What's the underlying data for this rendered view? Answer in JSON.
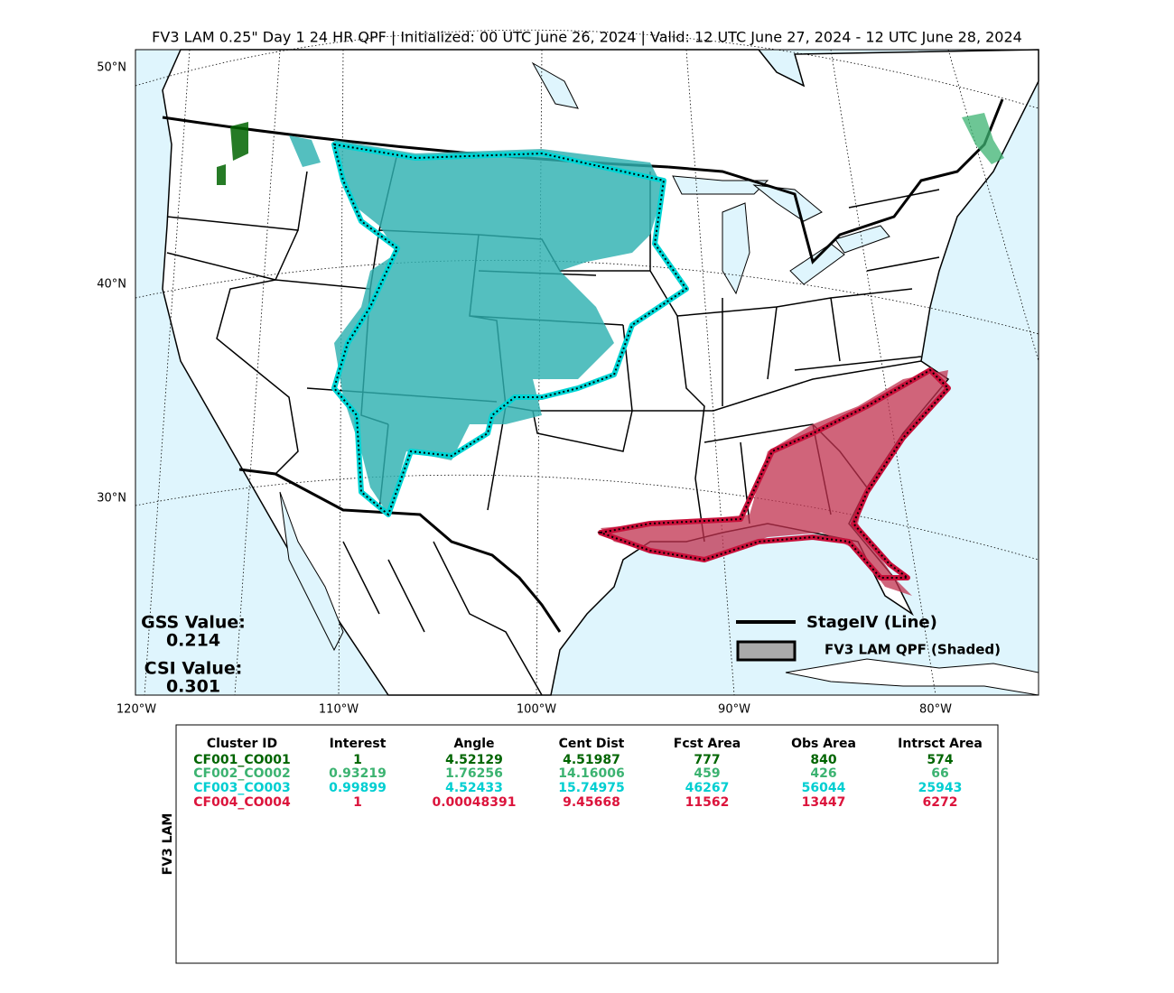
{
  "header": {
    "title": "FV3 LAM 0.25\" Day 1 24 HR QPF | Initialized: 00 UTC June 26, 2024 | Valid: 12 UTC June 27, 2024 - 12 UTC June 28, 2024"
  },
  "map": {
    "lat_labels": [
      "50°N",
      "40°N",
      "30°N"
    ],
    "lon_labels": [
      "120°W",
      "110°W",
      "100°W",
      "90°W",
      "80°W"
    ],
    "scores": {
      "gss_label": "GSS Value:",
      "gss_value": "0.214",
      "csi_label": "CSI Value:",
      "csi_value": "0.301"
    },
    "legend": {
      "line": "StageIV (Line)",
      "shaded": "FV3 LAM QPF (Shaded)"
    }
  },
  "table": {
    "side_label": "FV3 LAM",
    "columns": [
      "Cluster ID",
      "Interest",
      "Angle",
      "Cent Dist",
      "Fcst Area",
      "Obs Area",
      "Intrsct Area"
    ],
    "rows": [
      {
        "color": "#006400",
        "cells": [
          "CF001_CO001",
          "1",
          "4.52129",
          "4.51987",
          "777",
          "840",
          "574"
        ]
      },
      {
        "color": "#3cb371",
        "cells": [
          "CF002_CO002",
          "0.93219",
          "1.76256",
          "14.16006",
          "459",
          "426",
          "66"
        ]
      },
      {
        "color": "#00ced1",
        "cells": [
          "CF003_CO003",
          "0.99899",
          "4.52433",
          "15.74975",
          "46267",
          "56044",
          "25943"
        ]
      },
      {
        "color": "#dc143c",
        "cells": [
          "CF004_CO004",
          "1",
          "0.00048391",
          "9.45668",
          "11562",
          "13447",
          "6272"
        ]
      }
    ]
  }
}
